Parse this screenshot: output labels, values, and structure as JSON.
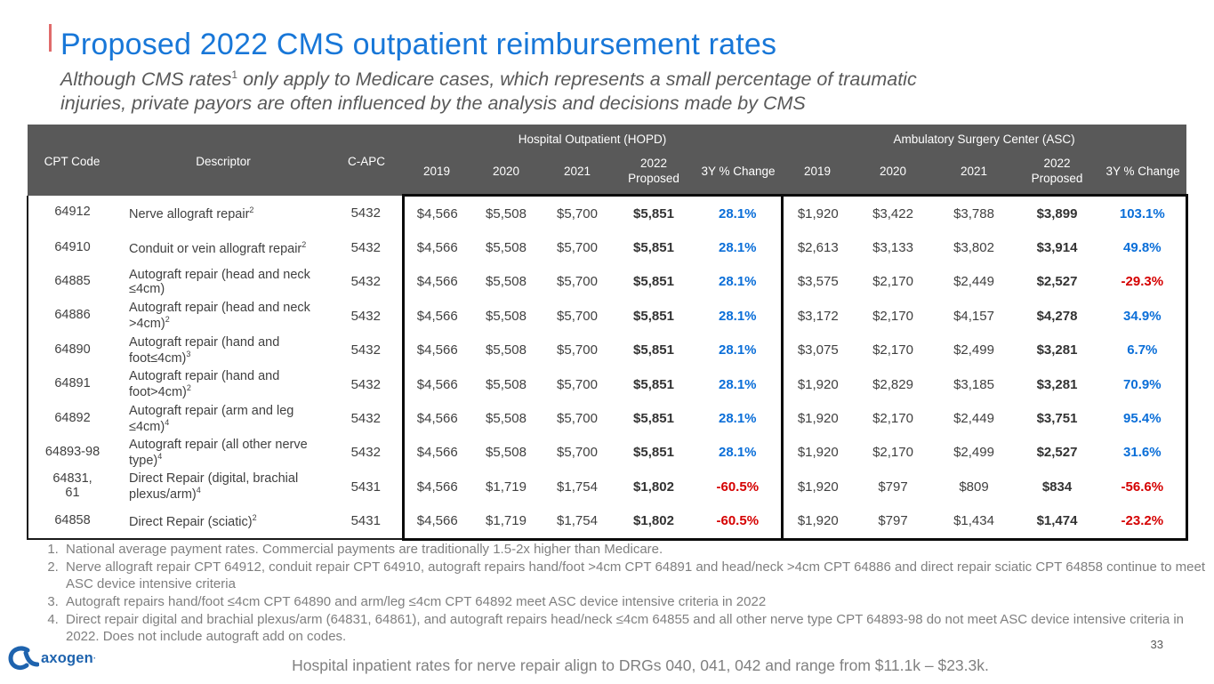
{
  "slide": {
    "title": "Proposed 2022 CMS outpatient reimbursement rates",
    "subtitle": {
      "pre": "Although CMS rates",
      "sup": "1",
      "line1_rest": " only apply to Medicare cases, which represents a small percentage of traumatic",
      "line2": "injuries, private payors are often influenced by the analysis and decisions made by CMS"
    },
    "footer_note": "Hospital inpatient rates for nerve repair align to DRGs 040, 041, 042 and range from $11.1k – $23.3k.",
    "page_number": "33",
    "logo_text": "axogen",
    "logo_mark": "·"
  },
  "colors": {
    "title_blue": "#1877d8",
    "header_bg": "#595959",
    "positive_change": "#0a6ed8",
    "negative_change": "#d50000",
    "brand_blue": "#1e63ae"
  },
  "table": {
    "groups": {
      "hopd": "Hospital Outpatient (HOPD)",
      "asc": "Ambulatory Surgery Center (ASC)"
    },
    "header": {
      "cpt": "CPT Code",
      "descriptor": "Descriptor",
      "capc": "C-APC"
    },
    "year_cols": [
      "2019",
      "2020",
      "2021",
      "2022 Proposed",
      "3Y % Change"
    ],
    "rows": [
      {
        "cpt": "64912",
        "descriptor": "Nerve allograft repair",
        "sup": "2",
        "capc": "5432",
        "hopd": [
          "$4,566",
          "$5,508",
          "$5,700",
          "$5,851",
          "28.1%"
        ],
        "asc": [
          "$1,920",
          "$3,422",
          "$3,788",
          "$3,899",
          "103.1%"
        ]
      },
      {
        "cpt": "64910",
        "descriptor": "Conduit or vein allograft repair",
        "sup": "2",
        "capc": "5432",
        "hopd": [
          "$4,566",
          "$5,508",
          "$5,700",
          "$5,851",
          "28.1%"
        ],
        "asc": [
          "$2,613",
          "$3,133",
          "$3,802",
          "$3,914",
          "49.8%"
        ]
      },
      {
        "cpt": "64885",
        "descriptor": "Autograft repair (head and neck ≤4cm)",
        "sup": "",
        "capc": "5432",
        "hopd": [
          "$4,566",
          "$5,508",
          "$5,700",
          "$5,851",
          "28.1%"
        ],
        "asc": [
          "$3,575",
          "$2,170",
          "$2,449",
          "$2,527",
          "-29.3%"
        ]
      },
      {
        "cpt": "64886",
        "descriptor": "Autograft repair (head and neck >4cm)",
        "sup": "2",
        "capc": "5432",
        "hopd": [
          "$4,566",
          "$5,508",
          "$5,700",
          "$5,851",
          "28.1%"
        ],
        "asc": [
          "$3,172",
          "$2,170",
          "$4,157",
          "$4,278",
          "34.9%"
        ]
      },
      {
        "cpt": "64890",
        "descriptor": "Autograft repair (hand and foot≤4cm)",
        "sup": "3",
        "capc": "5432",
        "hopd": [
          "$4,566",
          "$5,508",
          "$5,700",
          "$5,851",
          "28.1%"
        ],
        "asc": [
          "$3,075",
          "$2,170",
          "$2,499",
          "$3,281",
          "6.7%"
        ]
      },
      {
        "cpt": "64891",
        "descriptor": "Autograft repair (hand and foot>4cm)",
        "sup": "2",
        "capc": "5432",
        "hopd": [
          "$4,566",
          "$5,508",
          "$5,700",
          "$5,851",
          "28.1%"
        ],
        "asc": [
          "$1,920",
          "$2,829",
          "$3,185",
          "$3,281",
          "70.9%"
        ]
      },
      {
        "cpt": "64892",
        "descriptor": "Autograft repair (arm and leg ≤4cm)",
        "sup": "4",
        "capc": "5432",
        "hopd": [
          "$4,566",
          "$5,508",
          "$5,700",
          "$5,851",
          "28.1%"
        ],
        "asc": [
          "$1,920",
          "$2,170",
          "$2,449",
          "$3,751",
          "95.4%"
        ]
      },
      {
        "cpt": "64893-98",
        "descriptor": "Autograft repair (all other nerve type)",
        "sup": "4",
        "capc": "5432",
        "hopd": [
          "$4,566",
          "$5,508",
          "$5,700",
          "$5,851",
          "28.1%"
        ],
        "asc": [
          "$1,920",
          "$2,170",
          "$2,499",
          "$2,527",
          "31.6%"
        ]
      },
      {
        "cpt": "64831,\n61",
        "descriptor": "Direct Repair (digital, brachial plexus/arm)",
        "sup": "4",
        "capc": "5431",
        "hopd": [
          "$4,566",
          "$1,719",
          "$1,754",
          "$1,802",
          "-60.5%"
        ],
        "asc": [
          "$1,920",
          "$797",
          "$809",
          "$834",
          "-56.6%"
        ]
      },
      {
        "cpt": "64858",
        "descriptor": "Direct Repair (sciatic)",
        "sup": "2",
        "capc": "5431",
        "hopd": [
          "$4,566",
          "$1,719",
          "$1,754",
          "$1,802",
          "-60.5%"
        ],
        "asc": [
          "$1,920",
          "$797",
          "$1,434",
          "$1,474",
          "-23.2%"
        ]
      }
    ]
  },
  "footnotes": [
    "National average payment rates.  Commercial payments are traditionally 1.5-2x higher than Medicare.",
    "Nerve allograft repair CPT 64912, conduit repair CPT 64910, autograft repairs hand/foot >4cm CPT 64891 and head/neck >4cm CPT 64886 and direct repair sciatic CPT 64858 continue to meet ASC device intensive criteria",
    "Autograft repairs hand/foot ≤4cm CPT 64890 and arm/leg ≤4cm  CPT 64892 meet ASC device intensive criteria in 2022",
    "Direct repair digital and brachial plexus/arm (64831, 64861), and autograft repairs head/neck ≤4cm 64855 and all other nerve type CPT 64893-98 do not meet ASC device intensive criteria in 2022.  Does not include autograft add on codes."
  ]
}
